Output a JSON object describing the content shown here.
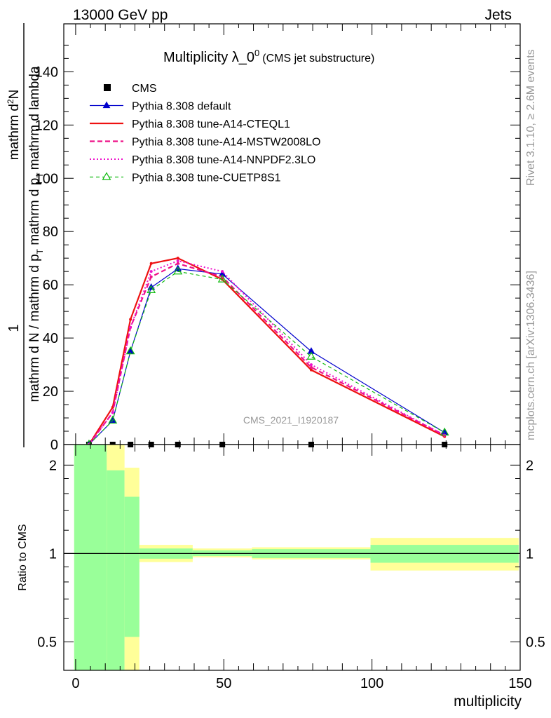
{
  "header": {
    "left": "13000 GeV pp",
    "right": "Jets"
  },
  "side_text": {
    "rivet": "Rivet 3.1.10, ≥ 2.6M events",
    "mcplots": "mcplots.cern.ch [arXiv:1306.3436]"
  },
  "watermark": "CMS_2021_I1920187",
  "colors": {
    "cms": "#000000",
    "default": "#0000cc",
    "cteql1": "#ee1111",
    "mstw": "#ee1188",
    "nnpdf": "#ee11cc",
    "cuetp8s1": "#11bb11",
    "band_inner": "#99ff99",
    "band_outer": "#ffff99"
  },
  "chart_data": [
    {
      "type": "line",
      "title": "Multiplicity λ_0",
      "title_sup": "0",
      "title_suffix": "(CMS jet substructure)",
      "ylabel_parts": {
        "num_one": "1",
        "den": "mathrm d N / mathrm d p",
        "den_sub": "T",
        "den2": " mathrm d p",
        "den2_sub": "T",
        "den3": "mathrm d lambda",
        "num_text": "mathrm d",
        "num_sup": "2",
        "num_text2": "N"
      },
      "xlim": [
        -4,
        150
      ],
      "ylim": [
        0,
        158
      ],
      "yticks": [
        0,
        20,
        40,
        60,
        80,
        100,
        120,
        140
      ],
      "x_bins": [
        4.5,
        12.5,
        18.5,
        25.5,
        34.5,
        49.5,
        79.5,
        124.5
      ],
      "series": [
        {
          "name": "CMS",
          "key": "cms",
          "style": "square",
          "values": [
            0,
            0,
            0,
            0,
            0,
            0,
            0,
            0
          ]
        },
        {
          "name": "Pythia 8.308 default",
          "key": "default",
          "style": "tri",
          "values": [
            0,
            9,
            35,
            59,
            66,
            64,
            35,
            4.5
          ]
        },
        {
          "name": "Pythia 8.308 tune-A14-CTEQL1",
          "key": "cteql1",
          "style": "solid",
          "values": [
            0,
            14,
            47,
            68,
            70,
            62,
            28,
            3
          ]
        },
        {
          "name": "Pythia 8.308 tune-A14-MSTW2008LO",
          "key": "mstw",
          "style": "dash",
          "values": [
            0,
            12,
            44,
            63,
            68,
            63,
            29,
            3.5
          ]
        },
        {
          "name": "Pythia 8.308 tune-A14-NNPDF2.3LO",
          "key": "nnpdf",
          "style": "dot",
          "values": [
            0,
            12,
            44,
            65,
            69,
            65,
            30,
            3.5
          ]
        },
        {
          "name": "Pythia 8.308 tune-CUETP8S1",
          "key": "cuetp8s1",
          "style": "dashtri",
          "values": [
            0,
            9,
            35,
            58,
            65,
            62,
            33,
            4.5
          ]
        }
      ]
    },
    {
      "type": "area",
      "ylabel": "Ratio to CMS",
      "xlabel": "multiplicity",
      "xlim": [
        -4,
        150
      ],
      "ylim": [
        0.4,
        2.35
      ],
      "log_scale": true,
      "xticks": [
        0,
        50,
        100,
        150
      ],
      "yticks": [
        0.5,
        1,
        2
      ],
      "reference": 1,
      "bands": [
        {
          "x": [
            -0.5,
            10.5
          ],
          "inner": [
            0.4,
            2.35
          ],
          "outer": [
            0.4,
            2.35
          ]
        },
        {
          "x": [
            10.5,
            16.5
          ],
          "inner": [
            0.4,
            1.92
          ],
          "outer": [
            0.4,
            2.35
          ]
        },
        {
          "x": [
            16.5,
            21.5
          ],
          "inner": [
            0.52,
            1.56
          ],
          "outer": [
            0.4,
            1.96
          ]
        },
        {
          "x": [
            21.5,
            39.5
          ],
          "inner": [
            0.96,
            1.04
          ],
          "outer": [
            0.935,
            1.07
          ]
        },
        {
          "x": [
            39.5,
            59.5
          ],
          "inner": [
            0.98,
            1.025
          ],
          "outer": [
            0.97,
            1.04
          ]
        },
        {
          "x": [
            59.5,
            99.5
          ],
          "inner": [
            0.965,
            1.035
          ],
          "outer": [
            0.955,
            1.05
          ]
        },
        {
          "x": [
            99.5,
            149.5
          ],
          "inner": [
            0.93,
            1.07
          ],
          "outer": [
            0.875,
            1.13
          ]
        }
      ]
    }
  ]
}
